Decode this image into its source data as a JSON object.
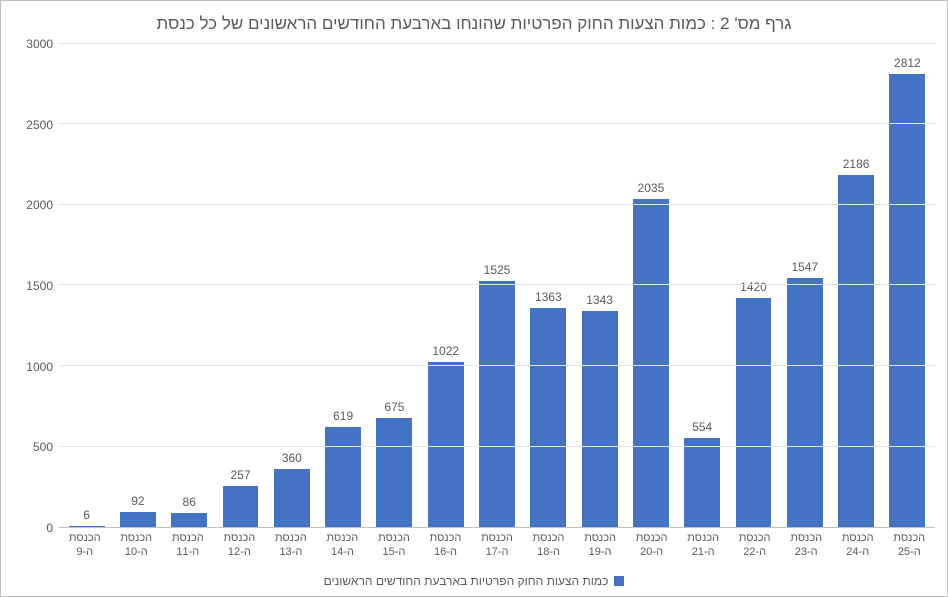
{
  "chart": {
    "type": "bar",
    "title": "גרף מס' 2 : כמות הצעות החוק הפרטיות שהונחו בארבעת החודשים הראשונים של כל כנסת",
    "title_fontsize": 17,
    "title_color": "#595959",
    "categories_line1": [
      "הכנסת",
      "הכנסת",
      "הכנסת",
      "הכנסת",
      "הכנסת",
      "הכנסת",
      "הכנסת",
      "הכנסת",
      "הכנסת",
      "הכנסת",
      "הכנסת",
      "הכנסת",
      "הכנסת",
      "הכנסת",
      "הכנסת",
      "הכנסת",
      "הכנסת"
    ],
    "categories_line2": [
      "ה-9",
      "ה-10",
      "ה-11",
      "ה-12",
      "ה-13",
      "ה-14",
      "ה-15",
      "ה-16",
      "ה-17",
      "ה-18",
      "ה-19",
      "ה-20",
      "ה-21",
      "ה-22",
      "ה-23",
      "ה-24",
      "ה-25"
    ],
    "values": [
      6,
      92,
      86,
      257,
      360,
      619,
      675,
      1022,
      1525,
      1363,
      1343,
      2035,
      554,
      1420,
      1547,
      2186,
      2812
    ],
    "bar_color": "#4472c4",
    "ylim": [
      0,
      3000
    ],
    "ytick_step": 500,
    "yticks": [
      0,
      500,
      1000,
      1500,
      2000,
      2500,
      3000
    ],
    "grid_color": "#e6e6e6",
    "axis_color": "#bfbfbf",
    "background_color": "#ffffff",
    "label_color": "#595959",
    "label_fontsize": 12,
    "tick_fontsize": 12,
    "xtick_fontsize": 11,
    "bar_width": 0.7,
    "legend": {
      "label": "כמות הצעות החוק הפרטיות בארבעת החודשים הראשונים",
      "swatch_color": "#4472c4"
    }
  }
}
